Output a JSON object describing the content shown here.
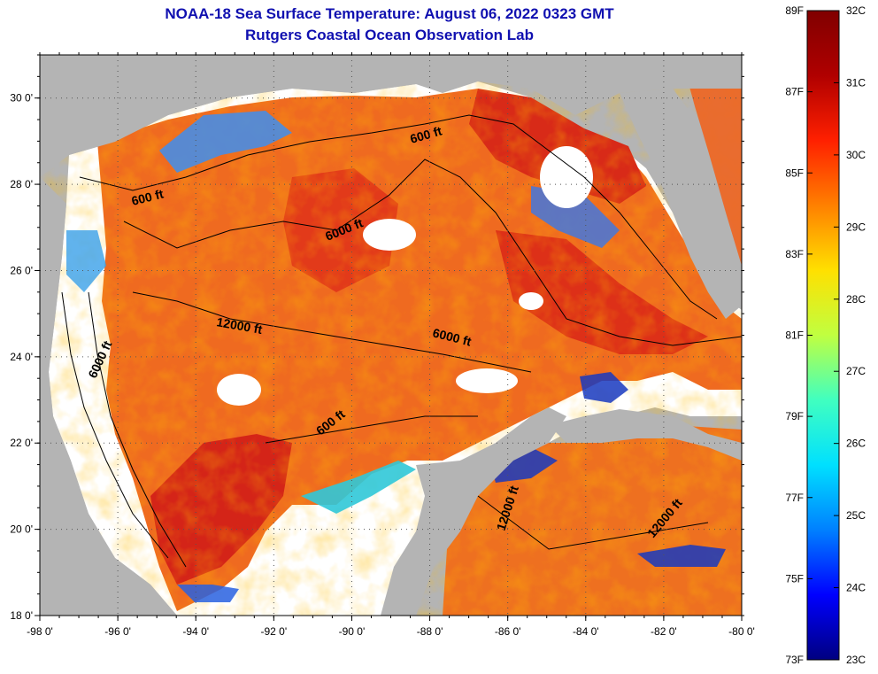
{
  "title": "NOAA-18 Sea Surface Temperature:  August 06, 2022 0323 GMT",
  "subtitle": "Rutgers Coastal Ocean Observation Lab",
  "map": {
    "lon_range": [
      -98,
      -80
    ],
    "lat_range": [
      18,
      31
    ],
    "lon_ticks": [
      "-98 0'",
      "-96 0'",
      "-94 0'",
      "-92 0'",
      "-90 0'",
      "-88 0'",
      "-86 0'",
      "-84 0'",
      "-82 0'",
      "-80 0'"
    ],
    "lat_ticks": [
      "18 0'",
      "20 0'",
      "22 0'",
      "24 0'",
      "26 0'",
      "28 0'",
      "30 0'"
    ],
    "grid": "dotted",
    "contour_labels": [
      "600 ft",
      "600 ft",
      "600 ft",
      "6000 ft",
      "6000 ft",
      "6000 ft",
      "12000 ft",
      "12000 ft",
      "12000 ft"
    ],
    "colors": {
      "land": "#b4b4b4",
      "cloud": "#ffffff",
      "warm": "#e8321a",
      "hot": "#c41818",
      "cool": "#1040c0"
    }
  },
  "colorbar": {
    "range_c": [
      23,
      32
    ],
    "range_f": [
      73,
      89
    ],
    "celsius_labels": [
      "32C",
      "31C",
      "30C",
      "29C",
      "28C",
      "27C",
      "26C",
      "25C",
      "24C",
      "23C"
    ],
    "fahrenheit_labels": [
      "89F",
      "87F",
      "85F",
      "83F",
      "81F",
      "79F",
      "77F",
      "75F",
      "73F"
    ],
    "colors": [
      "#000080",
      "#0000ff",
      "#0080ff",
      "#00e0ff",
      "#40ffc0",
      "#c0ff40",
      "#ffe000",
      "#ff8000",
      "#ff2000",
      "#b00000",
      "#800000"
    ]
  }
}
